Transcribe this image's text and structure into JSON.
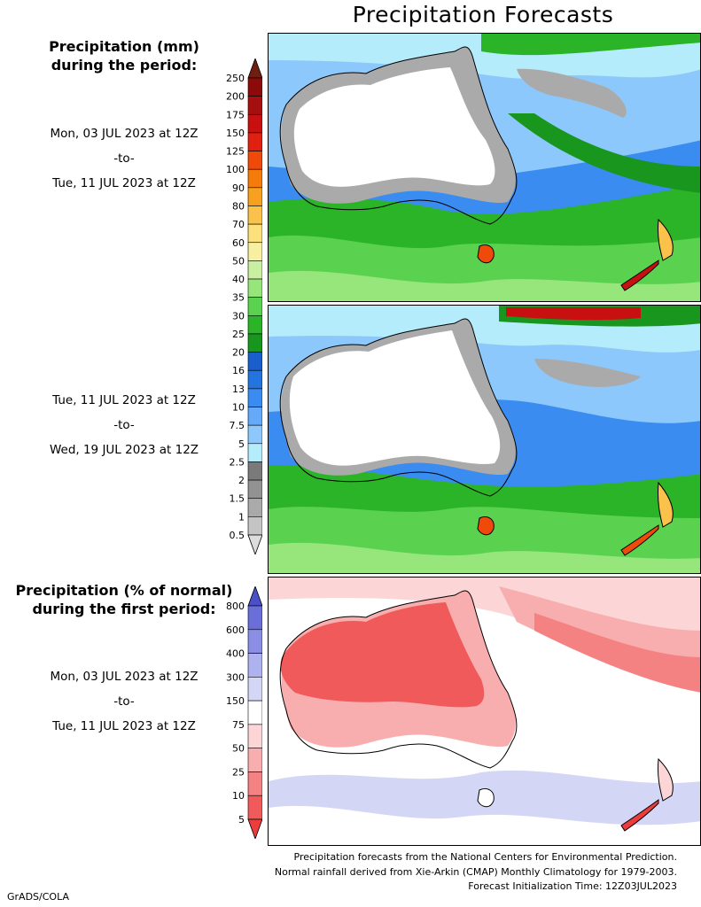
{
  "title": "Precipitation Forecasts",
  "amount_heading": [
    "Precipitation (mm)",
    "during the period:"
  ],
  "anomaly_heading": [
    "Precipitation (% of normal)",
    "during the first period:"
  ],
  "period1": [
    "Mon, 03 JUL 2023 at 12Z",
    "-to-",
    "Tue, 11 JUL 2023 at 12Z"
  ],
  "period2": [
    "Tue, 11 JUL 2023 at 12Z",
    "-to-",
    "Wed, 19 JUL 2023 at 12Z"
  ],
  "period3": [
    "Mon, 03 JUL 2023 at 12Z",
    "-to-",
    "Tue, 11 JUL 2023 at 12Z"
  ],
  "mm_scale": {
    "labels": [
      "250",
      "200",
      "175",
      "150",
      "125",
      "100",
      "90",
      "80",
      "70",
      "60",
      "50",
      "40",
      "35",
      "30",
      "25",
      "20",
      "16",
      "13",
      "10",
      "7.5",
      "5",
      "2.5",
      "2",
      "1.5",
      "1",
      "0.5"
    ],
    "colors": [
      "#6e1f10",
      "#8c0a0a",
      "#a50f0f",
      "#c81010",
      "#e02010",
      "#f04a0a",
      "#f57c0a",
      "#f8a020",
      "#fac24a",
      "#fbe07c",
      "#f6f0a0",
      "#c8f0a0",
      "#96e67c",
      "#5ad250",
      "#2cb428",
      "#18961e",
      "#1a5ecc",
      "#2474e0",
      "#3a8cf0",
      "#64aaf8",
      "#8cc8fc",
      "#b4ecfc",
      "#7a7a7a",
      "#929292",
      "#aaaaaa",
      "#c4c4c4",
      "#dcdcdc"
    ]
  },
  "pct_scale": {
    "labels": [
      "800",
      "600",
      "400",
      "300",
      "150",
      "75",
      "50",
      "25",
      "10",
      "5"
    ],
    "colors": [
      "#4a50c8",
      "#6a6ed8",
      "#8a8ee4",
      "#aeb2ee",
      "#d4d6f6",
      "#ffffff",
      "#fcd6d6",
      "#f8aeae",
      "#f48282",
      "#f05a5a",
      "#ec3c3c"
    ]
  },
  "footer": [
    "Precipitation forecasts from the National Centers for Environmental Prediction.",
    "Normal rainfall derived from Xie-Arkin (CMAP) Monthly Climatology for 1979-2003.",
    "Forecast Initialization Time: 12Z03JUL2023"
  ],
  "credit": "GrADS/COLA"
}
